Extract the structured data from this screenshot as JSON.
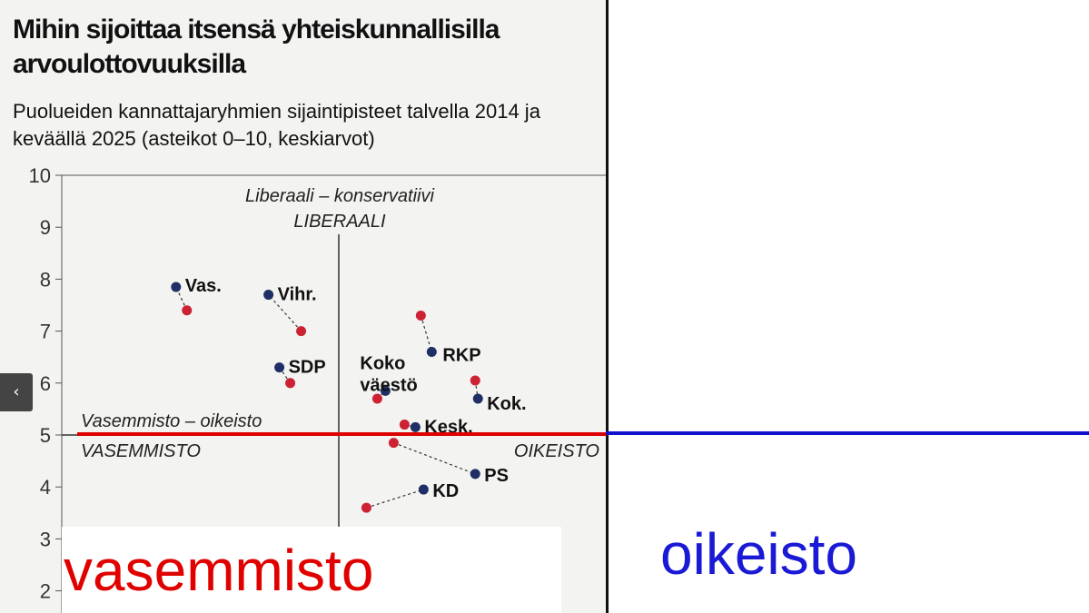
{
  "chart_data": {
    "type": "scatter",
    "title": "Mihin sijoittaa itsensä yhteiskunnallisilla arvoulottovuuksilla",
    "subtitle": "Puolueiden kannattajaryhmien sijaintipisteet talvella 2014 ja keväällä 2025 (asteikot 0–10, keskiarvot)",
    "y_ticks": [
      2,
      3,
      4,
      5,
      6,
      7,
      8,
      9,
      10
    ],
    "ylim": [
      1.6,
      10
    ],
    "xlim": [
      0,
      10
    ],
    "grid": false,
    "axis_annotations": {
      "vertical_axis_name": "Liberaali – konservatiivi",
      "vertical_axis_top": "LIBERAALI",
      "horizontal_axis_name": "Vasemmisto – oikeisto",
      "horizontal_axis_left": "VASEMMISTO",
      "horizontal_axis_right": "OIKEISTO"
    },
    "marker_colors": {
      "2014": "#cc2233",
      "2025": "#1f2f66"
    },
    "groups": [
      {
        "label": "Vas.",
        "p2014": [
          2.3,
          7.4
        ],
        "p2025": [
          2.1,
          7.85
        ]
      },
      {
        "label": "Vihr.",
        "p2014": [
          4.4,
          7.0
        ],
        "p2025": [
          3.8,
          7.7
        ]
      },
      {
        "label": "SDP",
        "p2014": [
          4.2,
          6.0
        ],
        "p2025": [
          4.0,
          6.3
        ]
      },
      {
        "label": "Koko väestö",
        "p2014": [
          5.8,
          5.7
        ],
        "p2025": [
          5.95,
          5.85
        ]
      },
      {
        "label": "RKP",
        "p2014": [
          6.6,
          7.3
        ],
        "p2025": [
          6.8,
          6.6
        ]
      },
      {
        "label": "Kok.",
        "p2014": [
          7.6,
          6.05
        ],
        "p2025": [
          7.65,
          5.7
        ]
      },
      {
        "label": "Kesk.",
        "p2014": [
          6.3,
          5.2
        ],
        "p2025": [
          6.5,
          5.15
        ]
      },
      {
        "label": "PS",
        "p2014": [
          6.1,
          4.85
        ],
        "p2025": [
          7.6,
          4.25
        ]
      },
      {
        "label": "KD",
        "p2014": [
          5.6,
          3.6
        ],
        "p2025": [
          6.65,
          3.95
        ]
      }
    ]
  },
  "overlay": {
    "left_word": "vasemmisto",
    "right_word": "oikeisto",
    "left_line_color": "#dd0000",
    "right_line_color": "#1111cc",
    "nav_prev_icon": "‹"
  }
}
